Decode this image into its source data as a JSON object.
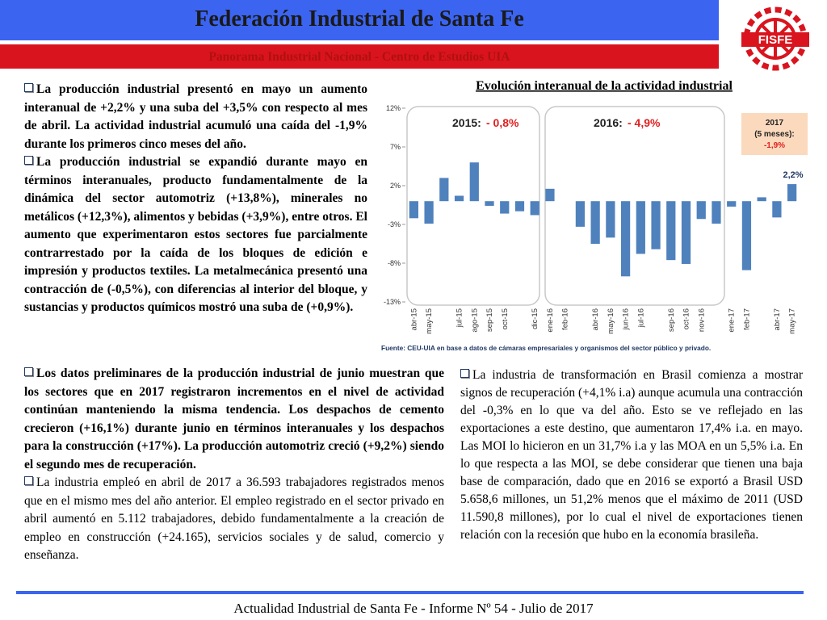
{
  "header": {
    "title": "Federación  Industrial de Santa Fe",
    "subtitle": "Panorama Industrial Nacional - Centro de Estudios UIA",
    "logo_text": "FISFE"
  },
  "paragraphs_top_left": [
    "La producción industrial presentó en mayo un aumento interanual de +2,2% y una suba del +3,5% con respecto al mes de abril. La actividad industrial acumuló una caída del -1,9% durante los primeros cinco meses del año.",
    "La producción industrial se expandió durante mayo en términos interanuales, producto fundamentalmente de la dinámica del sector automotriz (+13,8%), minerales no metálicos (+12,3%), alimentos y bebidas (+3,9%), entre otros. El aumento que experimentaron estos sectores fue parcialmente contrarrestado por la caída de los bloques de edición e impresión y productos textiles. La metalmecánica presentó una contracción de (-0,5%), con diferencias al interior del bloque, y sustancias y productos químicos mostró una suba de (+0,9%)."
  ],
  "paragraphs_bottom_left": [
    "Los datos preliminares de la producción industrial de junio muestran que los sectores que en 2017 registraron incrementos en el nivel de actividad continúan manteniendo la misma tendencia. Los despachos de cemento crecieron (+16,1%) durante junio en términos interanuales y los despachos para la construcción (+17%). La producción automotriz creció (+9,2%) siendo el segundo mes de recuperación.",
    "La industria empleó en abril de 2017 a 36.593 trabajadores registrados menos que en el mismo mes del año anterior. El empleo registrado en el sector privado en abril aumentó en 5.112 trabajadores, debido fundamentalmente a la creación de empleo en construcción (+24.165), servicios sociales y de salud, comercio y enseñanza."
  ],
  "paragraphs_bottom_right": [
    "La industria de transformación en Brasil comienza a mostrar signos de recuperación (+4,1% i.a) aunque acumula una contracción del -0,3% en lo que va del año. Esto se ve reflejado en las exportaciones a este destino, que aumentaron 17,4% i.a. en mayo. Las MOI lo hicieron en un 31,7% i.a y las MOA en un 5,5% i.a. En lo que respecta a las MOI, se debe considerar que tienen una baja base de comparación, dado que en 2016 se exportó a Brasil USD 5.658,6 millones, un 51,2% menos que el máximo de 2011 (USD 11.590,8 millones), por lo cual el nivel de exportaciones tienen relación con la recesión que hubo en la economía brasileña."
  ],
  "footer": "Actualidad Industrial de Santa Fe - Informe Nº 54 - Julio de 2017",
  "chart_data": {
    "type": "bar",
    "title": "Evolución interanual de la actividad industrial",
    "categories": [
      "abr-15",
      "may-15",
      null,
      "jul-15",
      "ago-15",
      "sep-15",
      "oct-15",
      null,
      "dic-15",
      "ene-16",
      "feb-16",
      null,
      "abr-16",
      "may-16",
      "jun-16",
      "jul-16",
      null,
      "sep-16",
      "oct-16",
      "nov-16",
      null,
      "ene-17",
      "feb-17",
      null,
      "abr-17",
      "may-17"
    ],
    "values": [
      -2.2,
      -2.9,
      3.0,
      0.7,
      5.0,
      -0.6,
      -1.6,
      -1.3,
      -1.8,
      1.6,
      0,
      -3.3,
      -5.5,
      -4.7,
      -9.7,
      -6.8,
      -6.2,
      -7.6,
      -8.1,
      -2.3,
      -2.9,
      -0.7,
      -8.9,
      0.5,
      -2.1,
      2.2
    ],
    "color": "#4f81bd",
    "ylim": [
      -13,
      12
    ],
    "yticks": [
      {
        "value": 12,
        "label": "12%"
      },
      {
        "value": 7,
        "label": "7%"
      },
      {
        "value": 2,
        "label": "2%"
      },
      {
        "value": -3,
        "label": "-3%"
      },
      {
        "value": -8,
        "label": "-8%"
      },
      {
        "value": -13,
        "label": "-13%"
      }
    ],
    "annotations": {
      "y2015_label": "2015:",
      "y2015_value": "- 0,8%",
      "y2016_label": "2016:",
      "y2016_value": "- 4,9%",
      "y2017": [
        "2017",
        "(5 meses):",
        "-1,9%"
      ],
      "last": "2,2%"
    },
    "source": "Fuente: CEU-UIA en base a datos de cámaras empresariales y organismos del sector público y privado."
  }
}
